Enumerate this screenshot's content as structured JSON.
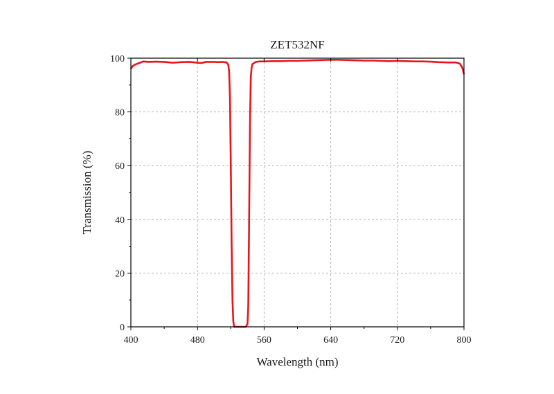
{
  "chart_data": {
    "type": "line",
    "title": "ZET532NF",
    "xlabel": "Wavelength (nm)",
    "ylabel": "Transmission (%)",
    "xlim": [
      400,
      800
    ],
    "ylim": [
      0,
      100
    ],
    "x_ticks": [
      400,
      480,
      560,
      640,
      720,
      800
    ],
    "y_ticks": [
      0,
      20,
      40,
      60,
      80,
      100
    ],
    "grid": true,
    "legend": "none",
    "line_color": "#e8141c",
    "series": [
      {
        "x": [
          400,
          402,
          405,
          410,
          415,
          420,
          430,
          440,
          450,
          460,
          470,
          480,
          485,
          490,
          500,
          505,
          510,
          515,
          517,
          518,
          519,
          520,
          521,
          522,
          523,
          524,
          538,
          540,
          541,
          542,
          543,
          544,
          545,
          546,
          550,
          555,
          560,
          570,
          580,
          590,
          600,
          610,
          620,
          630,
          640,
          650,
          660,
          670,
          680,
          690,
          700,
          710,
          720,
          730,
          740,
          750,
          760,
          770,
          780,
          790,
          795,
          798,
          800
        ],
        "values": [
          96,
          97,
          97.6,
          98.2,
          98.8,
          98.6,
          98.7,
          98.6,
          98.3,
          98.5,
          98.6,
          98.3,
          98.2,
          98.6,
          98.6,
          98.5,
          98.6,
          98.4,
          97.5,
          95,
          85,
          60,
          30,
          10,
          2,
          0,
          0,
          1,
          8,
          40,
          75,
          93,
          96.5,
          97.8,
          98.6,
          98.8,
          98.8,
          98.9,
          98.9,
          99,
          99,
          99.1,
          99.2,
          99.3,
          99.4,
          99.4,
          99.3,
          99.2,
          99.1,
          99.1,
          99,
          98.9,
          99,
          98.9,
          98.8,
          98.8,
          98.7,
          98.5,
          98.4,
          98.4,
          98,
          96.5,
          94
        ]
      }
    ]
  }
}
